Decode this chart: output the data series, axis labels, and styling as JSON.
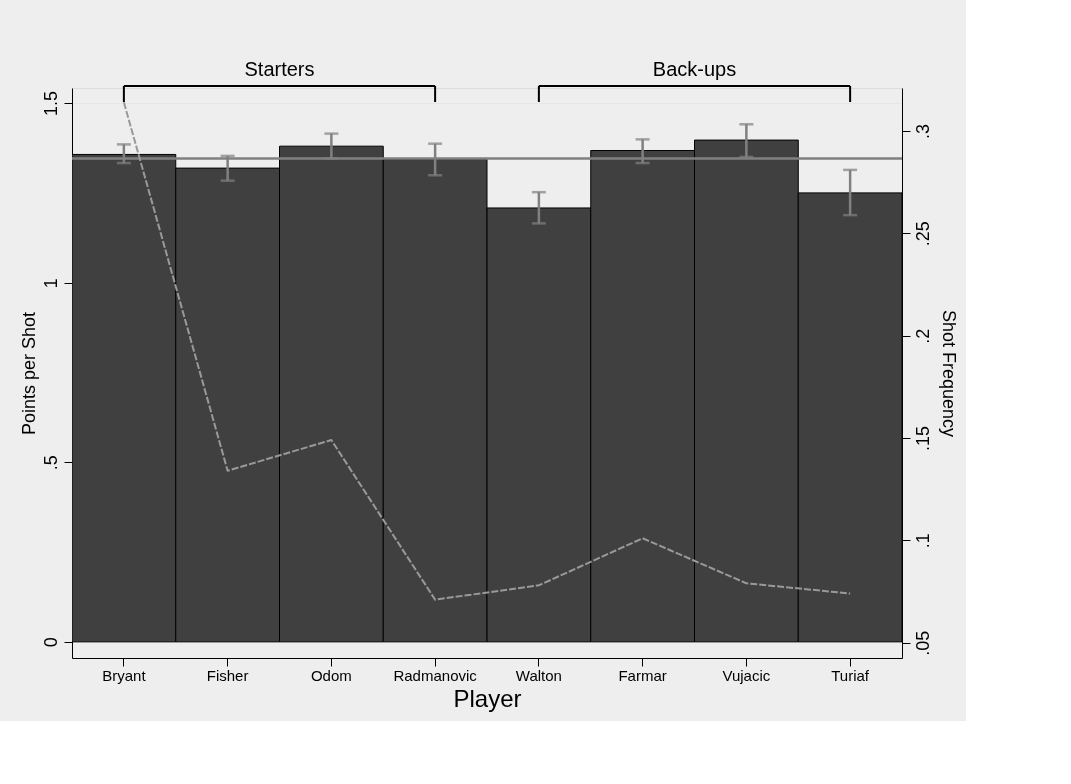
{
  "chart_data": {
    "type": "bar",
    "xlabel": "Player",
    "ylabel": "Points per Shot",
    "y2label": "Shot Frequency",
    "categories": [
      "Bryant",
      "Fisher",
      "Odom",
      "Radmanovic",
      "Walton",
      "Farmar",
      "Vujacic",
      "Turiaf"
    ],
    "series": [
      {
        "type": "bar",
        "color": "#404040",
        "values": [
          1.357,
          1.319,
          1.38,
          1.344,
          1.208,
          1.368,
          1.397,
          1.25
        ],
        "errors": [
          [
            1.333,
            1.385
          ],
          [
            1.284,
            1.353
          ],
          [
            1.346,
            1.415
          ],
          [
            1.299,
            1.387
          ],
          [
            1.165,
            1.252
          ],
          [
            1.333,
            1.399
          ],
          [
            1.35,
            1.441
          ],
          [
            1.188,
            1.314
          ]
        ]
      },
      {
        "type": "line",
        "axis": "y2",
        "color": "#999999",
        "line_style": "dashed",
        "marker": "none",
        "values": [
          0.314,
          0.134,
          0.149,
          0.071,
          0.078,
          0.101,
          0.079,
          0.074
        ]
      }
    ],
    "ylim": [
      -0.045,
      1.542
    ],
    "yticks": [
      0,
      {
        "value": 0.5,
        "label": ".5"
      },
      1,
      1.5
    ],
    "y2lim": [
      0.0425,
      0.321
    ],
    "y2ticks": [
      {
        "value": 0.05,
        "label": ".05"
      },
      {
        "value": 0.1,
        "label": ".1"
      },
      {
        "value": 0.15,
        "label": ".15"
      },
      {
        "value": 0.2,
        "label": ".2"
      },
      {
        "value": 0.25,
        "label": ".25"
      },
      {
        "value": 0.3,
        "label": ".3"
      }
    ],
    "ref_lines": [
      {
        "axis": "y",
        "value": 1.346,
        "color": "#808080"
      }
    ],
    "annotations": [
      "Starters",
      "Back-ups"
    ],
    "grid": "y"
  }
}
